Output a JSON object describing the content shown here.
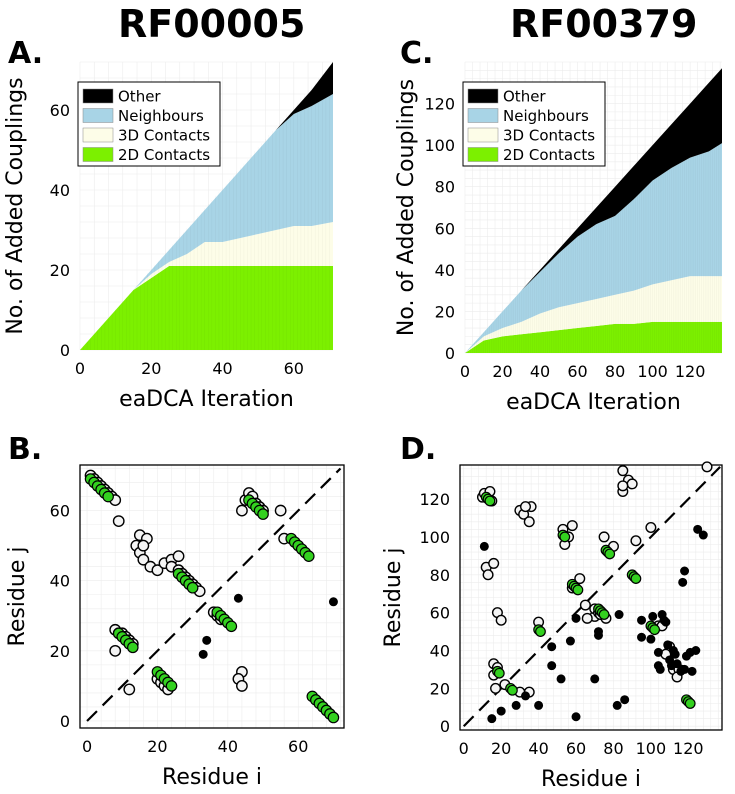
{
  "figure_titles": {
    "left": "RF00005",
    "right": "RF00379"
  },
  "panel_labels": {
    "A": "A.",
    "B": "B.",
    "C": "C.",
    "D": "D."
  },
  "colors": {
    "other": "#000000",
    "neighbours": "#a8d4e6",
    "contacts3d": "#fdfde8",
    "contacts2d": "#7cf000",
    "marker_green": "#33d11f",
    "marker_white": "#f4f4f4",
    "grid": "#ececec"
  },
  "chart_data": [
    {
      "id": "A",
      "type": "area",
      "title": "RF00005",
      "xlabel": "eaDCA Iteration",
      "ylabel": "No. of Added Couplings",
      "xlim": [
        0,
        71
      ],
      "ylim": [
        0,
        72
      ],
      "xticks": [
        0,
        20,
        40,
        60
      ],
      "yticks": [
        0,
        20,
        40,
        60
      ],
      "legend": [
        "Other",
        "Neighbours",
        "3D Contacts",
        "2D Contacts"
      ],
      "legend_position": "top-left",
      "x": [
        0,
        5,
        10,
        15,
        20,
        25,
        30,
        35,
        40,
        45,
        50,
        55,
        60,
        65,
        71
      ],
      "series": [
        {
          "name": "2D Contacts",
          "values": [
            0,
            5,
            10,
            15,
            18,
            21,
            21,
            21,
            21,
            21,
            21,
            21,
            21,
            21,
            21
          ]
        },
        {
          "name": "3D Contacts",
          "values": [
            0,
            0,
            0,
            0,
            1,
            1,
            3,
            6,
            6,
            7,
            8,
            9,
            10,
            10,
            11
          ]
        },
        {
          "name": "Neighbours",
          "values": [
            0,
            0,
            0,
            0,
            1,
            3,
            6,
            8,
            13,
            17,
            21,
            25,
            28,
            30,
            32
          ]
        },
        {
          "name": "Other",
          "values": [
            0,
            0,
            0,
            0,
            0,
            0,
            0,
            0,
            0,
            0,
            0,
            0,
            1,
            4,
            8
          ]
        }
      ]
    },
    {
      "id": "C",
      "type": "area",
      "title": "RF00379",
      "xlabel": "eaDCA Iteration",
      "ylabel": "No. of Added Couplings",
      "xlim": [
        0,
        137
      ],
      "ylim": [
        0,
        140
      ],
      "xticks": [
        0,
        20,
        40,
        60,
        80,
        100,
        120
      ],
      "yticks": [
        0,
        20,
        40,
        60,
        80,
        100,
        120
      ],
      "legend": [
        "Other",
        "Neighbours",
        "3D Contacts",
        "2D Contacts"
      ],
      "legend_position": "top-left",
      "x": [
        0,
        10,
        20,
        30,
        40,
        50,
        60,
        70,
        80,
        90,
        100,
        110,
        120,
        130,
        137
      ],
      "series": [
        {
          "name": "2D Contacts",
          "values": [
            0,
            6,
            8,
            9,
            10,
            11,
            12,
            13,
            14,
            14,
            15,
            15,
            15,
            15,
            15
          ]
        },
        {
          "name": "3D Contacts",
          "values": [
            0,
            2,
            4,
            6,
            9,
            11,
            12,
            13,
            14,
            16,
            18,
            20,
            22,
            22,
            22
          ]
        },
        {
          "name": "Neighbours",
          "values": [
            0,
            2,
            8,
            15,
            20,
            26,
            32,
            36,
            38,
            44,
            50,
            54,
            57,
            60,
            64
          ]
        },
        {
          "name": "Other",
          "values": [
            0,
            0,
            0,
            0,
            1,
            2,
            4,
            8,
            14,
            16,
            17,
            21,
            26,
            33,
            36
          ]
        }
      ]
    },
    {
      "id": "B",
      "type": "scatter",
      "xlabel": "Residue i",
      "ylabel": "Residue j",
      "xlim": [
        -2,
        73
      ],
      "ylim": [
        -2,
        73
      ],
      "xticks": [
        0,
        20,
        40,
        60
      ],
      "yticks": [
        0,
        20,
        40,
        60
      ],
      "diagonal": true,
      "contacts_2d": [
        [
          1,
          69
        ],
        [
          2,
          68
        ],
        [
          3,
          67
        ],
        [
          4,
          66
        ],
        [
          5,
          65
        ],
        [
          6,
          64
        ],
        [
          9,
          25
        ],
        [
          10,
          24
        ],
        [
          11,
          23
        ],
        [
          12,
          22
        ],
        [
          13,
          21
        ],
        [
          20,
          14
        ],
        [
          21,
          13
        ],
        [
          22,
          12
        ],
        [
          23,
          11
        ],
        [
          24,
          10
        ],
        [
          26,
          42
        ],
        [
          27,
          41
        ],
        [
          28,
          40
        ],
        [
          29,
          39
        ],
        [
          30,
          38
        ],
        [
          37,
          31
        ],
        [
          38,
          30
        ],
        [
          39,
          29
        ],
        [
          40,
          28
        ],
        [
          41,
          27
        ],
        [
          46,
          63
        ],
        [
          47,
          62
        ],
        [
          48,
          61
        ],
        [
          49,
          60
        ],
        [
          50,
          59
        ],
        [
          58,
          52
        ],
        [
          59,
          51
        ],
        [
          60,
          50
        ],
        [
          61,
          49
        ],
        [
          62,
          48
        ],
        [
          63,
          47
        ],
        [
          64,
          7
        ],
        [
          65,
          6
        ],
        [
          66,
          5
        ],
        [
          67,
          4
        ],
        [
          68,
          3
        ],
        [
          69,
          2
        ],
        [
          70,
          1
        ]
      ],
      "contacts_3d": [
        [
          1,
          70
        ],
        [
          2,
          69
        ],
        [
          3,
          68
        ],
        [
          4,
          67
        ],
        [
          5,
          66
        ],
        [
          6,
          65
        ],
        [
          7,
          64
        ],
        [
          8,
          63
        ],
        [
          9,
          57
        ],
        [
          8,
          26
        ],
        [
          9,
          25
        ],
        [
          10,
          25
        ],
        [
          11,
          24
        ],
        [
          12,
          23
        ],
        [
          13,
          22
        ],
        [
          8,
          20
        ],
        [
          12,
          9
        ],
        [
          14,
          50
        ],
        [
          15,
          48
        ],
        [
          16,
          46
        ],
        [
          18,
          44
        ],
        [
          20,
          43
        ],
        [
          22,
          45
        ],
        [
          24,
          46
        ],
        [
          26,
          47
        ],
        [
          24,
          44
        ],
        [
          26,
          43
        ],
        [
          27,
          42
        ],
        [
          28,
          41
        ],
        [
          29,
          40
        ],
        [
          30,
          39
        ],
        [
          31,
          38
        ],
        [
          32,
          37
        ],
        [
          15,
          53
        ],
        [
          17,
          52
        ],
        [
          16,
          50
        ],
        [
          20,
          12
        ],
        [
          21,
          11
        ],
        [
          22,
          10
        ],
        [
          23,
          9
        ],
        [
          44,
          60
        ],
        [
          45,
          63
        ],
        [
          46,
          65
        ],
        [
          47,
          64
        ],
        [
          48,
          62
        ],
        [
          49,
          61
        ],
        [
          50,
          60
        ],
        [
          55,
          60
        ],
        [
          56,
          52
        ],
        [
          36,
          31
        ],
        [
          37,
          30
        ],
        [
          38,
          29
        ],
        [
          44,
          14
        ],
        [
          43,
          12
        ],
        [
          44,
          10
        ]
      ],
      "other_pairs": [
        [
          43,
          35
        ],
        [
          34,
          23
        ],
        [
          33,
          19
        ],
        [
          70,
          34
        ]
      ]
    },
    {
      "id": "D",
      "type": "scatter",
      "xlabel": "Residue i",
      "ylabel": "Residue j",
      "xlim": [
        -2,
        138
      ],
      "ylim": [
        -2,
        138
      ],
      "xticks": [
        0,
        20,
        40,
        60,
        80,
        100,
        120
      ],
      "yticks": [
        0,
        20,
        40,
        60,
        80,
        100,
        120
      ],
      "diagonal": true,
      "contacts_2d": [
        [
          12,
          121
        ],
        [
          13,
          120
        ],
        [
          14,
          119
        ],
        [
          18,
          29
        ],
        [
          19,
          28
        ],
        [
          25,
          20
        ],
        [
          26,
          19
        ],
        [
          40,
          51
        ],
        [
          41,
          50
        ],
        [
          53,
          101
        ],
        [
          54,
          100
        ],
        [
          58,
          75
        ],
        [
          59,
          74
        ],
        [
          60,
          73
        ],
        [
          61,
          72
        ],
        [
          72,
          62
        ],
        [
          73,
          61
        ],
        [
          74,
          60
        ],
        [
          75,
          59
        ],
        [
          76,
          93
        ],
        [
          77,
          92
        ],
        [
          78,
          91
        ],
        [
          90,
          80
        ],
        [
          91,
          79
        ],
        [
          92,
          78
        ],
        [
          100,
          53
        ],
        [
          101,
          52
        ],
        [
          102,
          51
        ],
        [
          119,
          14
        ],
        [
          120,
          13
        ],
        [
          121,
          12
        ]
      ],
      "contacts_3d": [
        [
          10,
          121
        ],
        [
          11,
          123
        ],
        [
          14,
          124
        ],
        [
          15,
          119
        ],
        [
          30,
          114
        ],
        [
          32,
          112
        ],
        [
          35,
          108
        ],
        [
          36,
          116
        ],
        [
          33,
          116
        ],
        [
          12,
          84
        ],
        [
          13,
          80
        ],
        [
          16,
          86
        ],
        [
          18,
          60
        ],
        [
          20,
          56
        ],
        [
          53,
          104
        ],
        [
          56,
          100
        ],
        [
          58,
          106
        ],
        [
          54,
          96
        ],
        [
          70,
          58
        ],
        [
          75,
          100
        ],
        [
          80,
          95
        ],
        [
          92,
          98
        ],
        [
          85,
          124
        ],
        [
          88,
          130
        ],
        [
          85,
          135
        ],
        [
          90,
          128
        ],
        [
          85,
          127
        ],
        [
          100,
          105
        ],
        [
          104,
          53
        ],
        [
          106,
          53
        ],
        [
          110,
          42
        ],
        [
          108,
          38
        ],
        [
          112,
          30
        ],
        [
          115,
          30
        ],
        [
          114,
          26
        ],
        [
          16,
          33
        ],
        [
          18,
          31
        ],
        [
          17,
          20
        ],
        [
          22,
          22
        ],
        [
          40,
          55
        ],
        [
          58,
          73
        ],
        [
          62,
          78
        ],
        [
          66,
          57
        ],
        [
          65,
          64
        ],
        [
          70,
          62
        ],
        [
          72,
          60
        ],
        [
          73,
          59
        ],
        [
          76,
          57
        ],
        [
          130,
          137
        ],
        [
          16,
          27
        ],
        [
          30,
          18
        ],
        [
          35,
          18
        ]
      ],
      "other_pairs": [
        [
          15,
          4
        ],
        [
          20,
          8
        ],
        [
          28,
          11
        ],
        [
          33,
          16
        ],
        [
          40,
          11
        ],
        [
          47,
          32
        ],
        [
          47,
          42
        ],
        [
          52,
          25
        ],
        [
          57,
          45
        ],
        [
          60,
          5
        ],
        [
          60,
          57
        ],
        [
          70,
          25
        ],
        [
          72,
          48
        ],
        [
          72,
          50
        ],
        [
          82,
          11
        ],
        [
          83,
          59
        ],
        [
          86,
          14
        ],
        [
          95,
          47
        ],
        [
          95,
          56
        ],
        [
          100,
          46
        ],
        [
          101,
          58
        ],
        [
          104,
          32
        ],
        [
          104,
          39
        ],
        [
          105,
          30
        ],
        [
          106,
          59
        ],
        [
          107,
          56
        ],
        [
          108,
          55
        ],
        [
          109,
          43
        ],
        [
          110,
          35
        ],
        [
          111,
          32
        ],
        [
          112,
          40
        ],
        [
          113,
          38
        ],
        [
          114,
          33
        ],
        [
          116,
          29
        ],
        [
          117,
          76
        ],
        [
          118,
          82
        ],
        [
          119,
          37
        ],
        [
          121,
          39
        ],
        [
          122,
          29
        ],
        [
          125,
          104
        ],
        [
          128,
          101
        ],
        [
          124,
          40
        ],
        [
          11,
          95
        ],
        [
          117,
          30
        ],
        [
          118,
          30
        ]
      ]
    }
  ]
}
